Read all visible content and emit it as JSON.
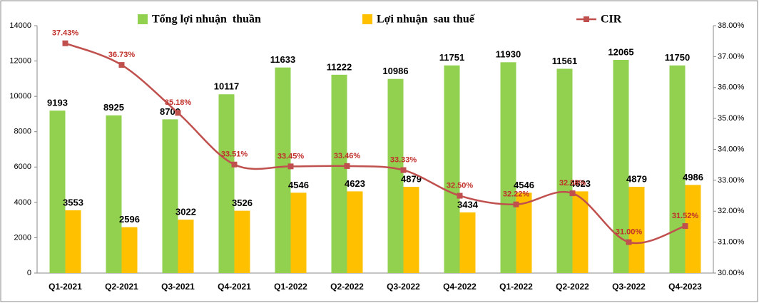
{
  "chart_data": {
    "type": "combo",
    "categories": [
      "Q1-2021",
      "Q2-2021",
      "Q3-2021",
      "Q4-2021",
      "Q1-2022",
      "Q2-2022",
      "Q3-2022",
      "Q4-2022",
      "Q1-2022",
      "Q2-2022",
      "Q3-2022",
      "Q4-2023"
    ],
    "series": [
      {
        "name": "Tổng lợi nhuận  thuần",
        "type": "bar",
        "color": "#92d050",
        "values": [
          9193,
          8925,
          8700,
          10117,
          11633,
          11222,
          10986,
          11751,
          11930,
          11561,
          12065,
          11750
        ]
      },
      {
        "name": "Lợi nhuận  sau thuế",
        "type": "bar",
        "color": "#ffc000",
        "values": [
          3553,
          2596,
          3022,
          3526,
          4546,
          4623,
          4879,
          3434,
          4546,
          4623,
          4879,
          4986
        ]
      },
      {
        "name": "CIR",
        "type": "line",
        "axis": "y2",
        "color": "#c0504d",
        "values": [
          37.43,
          36.73,
          35.18,
          33.51,
          33.45,
          33.46,
          33.33,
          32.5,
          32.22,
          32.58,
          31.0,
          31.52
        ],
        "value_labels": [
          "37.43%",
          "36.73%",
          "35.18%",
          "33.51%",
          "33.45%",
          "33.46%",
          "33.33%",
          "32.50%",
          "32.22%",
          "32.58%",
          "31.00%",
          "31.52%"
        ]
      }
    ],
    "ylim": [
      0,
      14000
    ],
    "yticks": [
      0,
      2000,
      4000,
      6000,
      8000,
      10000,
      12000,
      14000
    ],
    "y2lim": [
      30,
      38
    ],
    "y2ticks": [
      {
        "value": 30,
        "label": "30.00%"
      },
      {
        "value": 31,
        "label": "31.00%"
      },
      {
        "value": 32,
        "label": "32.00%"
      },
      {
        "value": 33,
        "label": "33.00%"
      },
      {
        "value": 34,
        "label": "34.00%"
      },
      {
        "value": 35,
        "label": "35.00%"
      },
      {
        "value": 36,
        "label": "36.00%"
      },
      {
        "value": 37,
        "label": "37.00%"
      },
      {
        "value": 38,
        "label": "38.00%"
      }
    ]
  }
}
